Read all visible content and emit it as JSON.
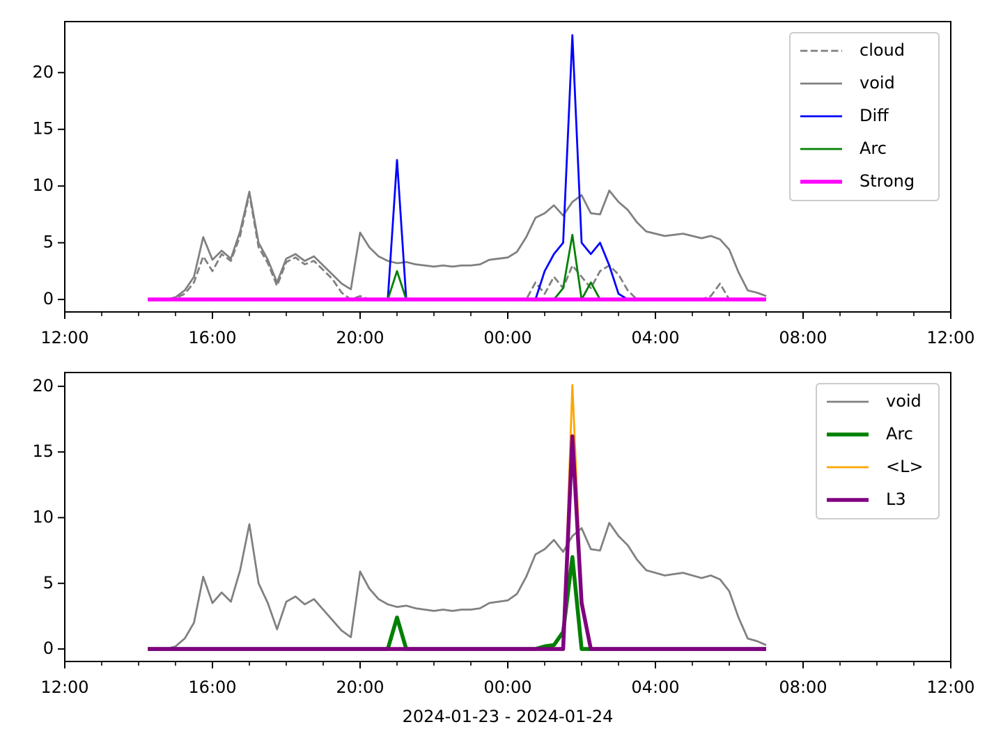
{
  "chart_data": [
    {
      "type": "line",
      "x": [
        14.25,
        14.5,
        14.75,
        15,
        15.25,
        15.5,
        15.75,
        16,
        16.25,
        16.5,
        16.75,
        17,
        17.25,
        17.5,
        17.75,
        18,
        18.25,
        18.5,
        18.75,
        19,
        19.25,
        19.5,
        19.75,
        20,
        20.25,
        20.5,
        20.75,
        21,
        21.25,
        21.5,
        21.75,
        22,
        22.25,
        22.5,
        22.75,
        23,
        23.25,
        23.5,
        23.75,
        24,
        24.25,
        24.5,
        24.75,
        25,
        25.25,
        25.5,
        25.75,
        26,
        26.25,
        26.5,
        26.75,
        27,
        27.25,
        27.5,
        27.75,
        28,
        28.25,
        28.5,
        28.75,
        29,
        29.25,
        29.5,
        29.75,
        30,
        30.25,
        30.5,
        30.75,
        31
      ],
      "xlim": [
        12,
        36
      ],
      "xticks": [
        {
          "value": 12,
          "label": "12:00"
        },
        {
          "value": 16,
          "label": "16:00"
        },
        {
          "value": 20,
          "label": "20:00"
        },
        {
          "value": 24,
          "label": "00:00"
        },
        {
          "value": 28,
          "label": "04:00"
        },
        {
          "value": 32,
          "label": "08:00"
        },
        {
          "value": 36,
          "label": "12:00"
        }
      ],
      "ylim": [
        -1.1,
        24.5
      ],
      "yticks": [
        0,
        5,
        10,
        15,
        20
      ],
      "legend": "upper right",
      "series": [
        {
          "name": "cloud",
          "color": "#808080",
          "linestyle": "dashed",
          "linewidth": 1,
          "values": [
            0,
            0,
            0,
            0.1,
            0.5,
            1.5,
            3.8,
            2.5,
            4,
            3.4,
            5.6,
            9.3,
            4.6,
            3.2,
            1.2,
            3.3,
            3.7,
            3.1,
            3.4,
            2.6,
            1.8,
            0.6,
            0,
            0.3,
            0,
            0,
            0,
            0,
            0,
            0,
            0,
            0,
            0,
            0,
            0,
            0,
            0,
            0,
            0,
            0,
            0,
            0,
            1.5,
            0.5,
            2,
            1,
            3,
            2,
            1,
            2.5,
            3,
            2.2,
            0.8,
            0,
            0,
            0,
            0,
            0,
            0,
            0,
            0,
            0.3,
            1.4,
            0,
            0,
            0,
            0,
            0
          ]
        },
        {
          "name": "void",
          "color": "#808080",
          "linestyle": "solid",
          "linewidth": 1,
          "values": [
            0,
            0,
            0,
            0.2,
            0.8,
            2,
            5.5,
            3.5,
            4.3,
            3.6,
            6,
            9.5,
            5,
            3.5,
            1.5,
            3.6,
            4,
            3.4,
            3.8,
            3,
            2.2,
            1.4,
            0.9,
            5.9,
            4.6,
            3.8,
            3.4,
            3.2,
            3.3,
            3.1,
            3,
            2.9,
            3,
            2.9,
            3,
            3,
            3.1,
            3.5,
            3.6,
            3.7,
            4.2,
            5.5,
            7.2,
            7.6,
            8.3,
            7.4,
            8.6,
            9.2,
            7.6,
            7.5,
            9.6,
            8.6,
            7.9,
            6.8,
            6,
            5.8,
            5.6,
            5.7,
            5.8,
            5.6,
            5.4,
            5.6,
            5.3,
            4.4,
            2.4,
            0.8,
            0.6,
            0.3
          ]
        },
        {
          "name": "Diff",
          "color": "#0000ff",
          "linestyle": "solid",
          "linewidth": 1,
          "values": [
            0,
            0,
            0,
            0,
            0,
            0,
            0,
            0,
            0,
            0,
            0,
            0,
            0,
            0,
            0,
            0,
            0,
            0,
            0,
            0,
            0,
            0,
            0,
            0,
            0,
            0,
            0,
            12.3,
            0,
            0,
            0,
            0,
            0,
            0,
            0,
            0,
            0,
            0,
            0,
            0,
            0,
            0,
            0,
            2.5,
            4,
            5,
            23.3,
            5,
            4,
            5,
            3,
            0.5,
            0,
            0,
            0,
            0,
            0,
            0,
            0,
            0,
            0,
            0,
            0,
            0,
            0,
            0,
            0,
            0
          ]
        },
        {
          "name": "Arc",
          "color": "#008000",
          "linestyle": "solid",
          "linewidth": 1,
          "values": [
            0,
            0,
            0,
            0,
            0,
            0,
            0,
            0,
            0,
            0,
            0,
            0,
            0,
            0,
            0,
            0,
            0,
            0,
            0,
            0,
            0,
            0,
            0,
            0,
            0,
            0,
            0,
            2.5,
            0,
            0,
            0,
            0,
            0,
            0,
            0,
            0,
            0,
            0,
            0,
            0,
            0,
            0,
            0,
            0,
            0,
            1,
            5.7,
            0,
            1.5,
            0,
            0,
            0,
            0,
            0,
            0,
            0,
            0,
            0,
            0,
            0,
            0,
            0,
            0,
            0,
            0,
            0,
            0,
            0
          ]
        },
        {
          "name": "Strong",
          "color": "#ff00ff",
          "linestyle": "solid",
          "linewidth": 2,
          "values": [
            0,
            0,
            0,
            0,
            0,
            0,
            0,
            0,
            0,
            0,
            0,
            0,
            0,
            0,
            0,
            0,
            0,
            0,
            0,
            0,
            0,
            0,
            0,
            0,
            0,
            0,
            0,
            0,
            0,
            0,
            0,
            0,
            0,
            0,
            0,
            0,
            0,
            0,
            0,
            0,
            0,
            0,
            0,
            0,
            0,
            0,
            0,
            0,
            0,
            0,
            0,
            0,
            0,
            0,
            0,
            0,
            0,
            0,
            0,
            0,
            0,
            0,
            0,
            0,
            0,
            0,
            0,
            0
          ]
        }
      ]
    },
    {
      "type": "line",
      "x": [
        14.25,
        14.5,
        14.75,
        15,
        15.25,
        15.5,
        15.75,
        16,
        16.25,
        16.5,
        16.75,
        17,
        17.25,
        17.5,
        17.75,
        18,
        18.25,
        18.5,
        18.75,
        19,
        19.25,
        19.5,
        19.75,
        20,
        20.25,
        20.5,
        20.75,
        21,
        21.25,
        21.5,
        21.75,
        22,
        22.25,
        22.5,
        22.75,
        23,
        23.25,
        23.5,
        23.75,
        24,
        24.25,
        24.5,
        24.75,
        25,
        25.25,
        25.5,
        25.75,
        26,
        26.25,
        26.5,
        26.75,
        27,
        27.25,
        27.5,
        27.75,
        28,
        28.25,
        28.5,
        28.75,
        29,
        29.25,
        29.5,
        29.75,
        30,
        30.25,
        30.5,
        30.75,
        31
      ],
      "xlim": [
        12,
        36
      ],
      "xticks": [
        {
          "value": 12,
          "label": "12:00"
        },
        {
          "value": 16,
          "label": "16:00"
        },
        {
          "value": 20,
          "label": "20:00"
        },
        {
          "value": 24,
          "label": "00:00"
        },
        {
          "value": 28,
          "label": "04:00"
        },
        {
          "value": 32,
          "label": "08:00"
        },
        {
          "value": 36,
          "label": "12:00"
        }
      ],
      "xlabel": "2024-01-23 - 2024-01-24",
      "ylim": [
        -0.95,
        21.05
      ],
      "yticks": [
        0,
        5,
        10,
        15,
        20
      ],
      "legend": "upper right",
      "series": [
        {
          "name": "void",
          "color": "#808080",
          "linestyle": "solid",
          "linewidth": 1,
          "values": [
            0,
            0,
            0,
            0.2,
            0.8,
            2,
            5.5,
            3.5,
            4.3,
            3.6,
            6,
            9.5,
            5,
            3.5,
            1.5,
            3.6,
            4,
            3.4,
            3.8,
            3,
            2.2,
            1.4,
            0.9,
            5.9,
            4.6,
            3.8,
            3.4,
            3.2,
            3.3,
            3.1,
            3,
            2.9,
            3,
            2.9,
            3,
            3,
            3.1,
            3.5,
            3.6,
            3.7,
            4.2,
            5.5,
            7.2,
            7.6,
            8.3,
            7.4,
            8.6,
            9.2,
            7.6,
            7.5,
            9.6,
            8.6,
            7.9,
            6.8,
            6,
            5.8,
            5.6,
            5.7,
            5.8,
            5.6,
            5.4,
            5.6,
            5.3,
            4.4,
            2.4,
            0.8,
            0.6,
            0.3
          ]
        },
        {
          "name": "Arc",
          "color": "#008000",
          "linestyle": "solid",
          "linewidth": 2,
          "values": [
            0,
            0,
            0,
            0,
            0,
            0,
            0,
            0,
            0,
            0,
            0,
            0,
            0,
            0,
            0,
            0,
            0,
            0,
            0,
            0,
            0,
            0,
            0,
            0,
            0,
            0,
            0,
            2.4,
            0,
            0,
            0,
            0,
            0,
            0,
            0,
            0,
            0,
            0,
            0,
            0,
            0,
            0,
            0,
            0.2,
            0.3,
            1.3,
            7,
            0,
            0,
            0,
            0,
            0,
            0,
            0,
            0,
            0,
            0,
            0,
            0,
            0,
            0,
            0,
            0,
            0,
            0,
            0,
            0,
            0
          ]
        },
        {
          "name": "<L>",
          "color": "#ffa500",
          "linestyle": "solid",
          "linewidth": 1,
          "values": [
            0,
            0,
            0,
            0,
            0,
            0,
            0,
            0,
            0,
            0,
            0,
            0,
            0,
            0,
            0,
            0,
            0,
            0,
            0,
            0,
            0,
            0,
            0,
            0,
            0,
            0,
            0,
            0,
            0,
            0,
            0,
            0,
            0,
            0,
            0,
            0,
            0,
            0,
            0,
            0,
            0,
            0,
            0,
            0,
            0,
            0,
            20.1,
            4,
            0,
            0,
            0,
            0,
            0,
            0,
            0,
            0,
            0,
            0,
            0,
            0,
            0,
            0,
            0,
            0,
            0,
            0,
            0,
            0
          ]
        },
        {
          "name": "L3",
          "color": "#800080",
          "linestyle": "solid",
          "linewidth": 2,
          "values": [
            0,
            0,
            0,
            0,
            0,
            0,
            0,
            0,
            0,
            0,
            0,
            0,
            0,
            0,
            0,
            0,
            0,
            0,
            0,
            0,
            0,
            0,
            0,
            0,
            0,
            0,
            0,
            0,
            0,
            0,
            0,
            0,
            0,
            0,
            0,
            0,
            0,
            0,
            0,
            0,
            0,
            0,
            0,
            0,
            0,
            0,
            16.2,
            3.5,
            0,
            0,
            0,
            0,
            0,
            0,
            0,
            0,
            0,
            0,
            0,
            0,
            0,
            0,
            0,
            0,
            0,
            0,
            0,
            0
          ]
        }
      ]
    }
  ]
}
